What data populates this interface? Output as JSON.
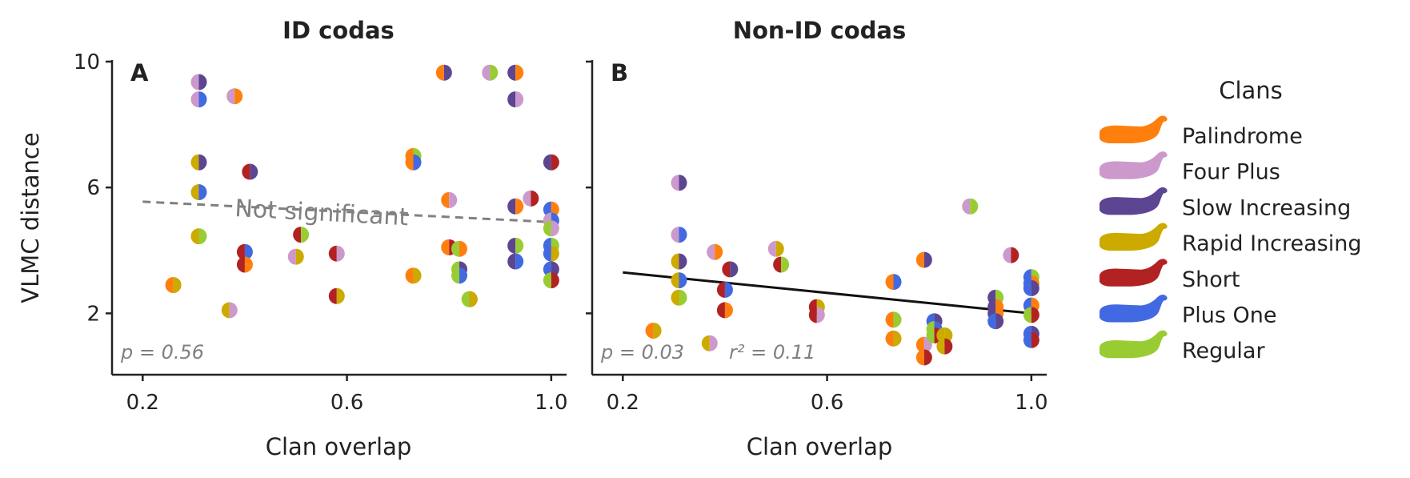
{
  "colors": {
    "Palindrome": "#ff7f0e",
    "Four Plus": "#cc99cc",
    "Slow Increasing": "#5c4591",
    "Rapid Increasing": "#ccaa00",
    "Short": "#b22222",
    "Plus One": "#4169e1",
    "Regular": "#99cc33",
    "axis": "#222222",
    "annotation": "#808080",
    "fit_line": "#111111"
  },
  "legend": {
    "title": "Clans",
    "icon": "sperm-whale-icon",
    "items": [
      "Palindrome",
      "Four Plus",
      "Slow Increasing",
      "Rapid Increasing",
      "Short",
      "Plus One",
      "Regular"
    ]
  },
  "chart_data": [
    {
      "type": "scatter",
      "title": "ID codas",
      "panel_label": "A",
      "xlabel": "Clan overlap",
      "ylabel": "VLMC distance",
      "xlim": [
        0.14,
        1.03
      ],
      "ylim": [
        0.05,
        10.05
      ],
      "xticks": [
        0.2,
        0.6,
        1.0
      ],
      "xtick_labels": [
        "0.2",
        "0.6",
        "1.0"
      ],
      "yticks": [
        2,
        6,
        10
      ],
      "ytick_labels": [
        "2",
        "6",
        "10"
      ],
      "fit": {
        "x": [
          0.2,
          1.0
        ],
        "y": [
          5.55,
          4.9
        ],
        "style": "dashed",
        "label": "Not significant"
      },
      "stat_p": "p = 0.56",
      "points": [
        {
          "x": 0.31,
          "y": 9.35,
          "pair": [
            "Four Plus",
            "Slow Increasing"
          ]
        },
        {
          "x": 0.31,
          "y": 8.8,
          "pair": [
            "Four Plus",
            "Plus One"
          ]
        },
        {
          "x": 0.38,
          "y": 8.9,
          "pair": [
            "Four Plus",
            "Palindrome"
          ]
        },
        {
          "x": 0.31,
          "y": 6.8,
          "pair": [
            "Rapid Increasing",
            "Slow Increasing"
          ]
        },
        {
          "x": 0.31,
          "y": 5.85,
          "pair": [
            "Rapid Increasing",
            "Plus One"
          ]
        },
        {
          "x": 0.31,
          "y": 4.45,
          "pair": [
            "Rapid Increasing",
            "Regular"
          ]
        },
        {
          "x": 0.26,
          "y": 2.9,
          "pair": [
            "Palindrome",
            "Rapid Increasing"
          ]
        },
        {
          "x": 0.37,
          "y": 2.1,
          "pair": [
            "Rapid Increasing",
            "Four Plus"
          ]
        },
        {
          "x": 0.41,
          "y": 6.5,
          "pair": [
            "Short",
            "Slow Increasing"
          ]
        },
        {
          "x": 0.4,
          "y": 3.95,
          "pair": [
            "Short",
            "Plus One"
          ]
        },
        {
          "x": 0.4,
          "y": 3.55,
          "pair": [
            "Short",
            "Palindrome"
          ]
        },
        {
          "x": 0.5,
          "y": 3.8,
          "pair": [
            "Four Plus",
            "Rapid Increasing"
          ]
        },
        {
          "x": 0.51,
          "y": 4.5,
          "pair": [
            "Short",
            "Regular"
          ]
        },
        {
          "x": 0.58,
          "y": 3.9,
          "pair": [
            "Short",
            "Four Plus"
          ]
        },
        {
          "x": 0.58,
          "y": 2.55,
          "pair": [
            "Short",
            "Rapid Increasing"
          ]
        },
        {
          "x": 0.73,
          "y": 7.0,
          "pair": [
            "Palindrome",
            "Regular"
          ]
        },
        {
          "x": 0.73,
          "y": 6.8,
          "pair": [
            "Palindrome",
            "Plus One"
          ]
        },
        {
          "x": 0.73,
          "y": 3.2,
          "pair": [
            "Palindrome",
            "Rapid Increasing"
          ]
        },
        {
          "x": 0.79,
          "y": 9.65,
          "pair": [
            "Palindrome",
            "Slow Increasing"
          ]
        },
        {
          "x": 0.8,
          "y": 5.6,
          "pair": [
            "Palindrome",
            "Four Plus"
          ]
        },
        {
          "x": 0.8,
          "y": 4.1,
          "pair": [
            "Palindrome",
            "Short"
          ]
        },
        {
          "x": 0.82,
          "y": 4.05,
          "pair": [
            "Regular",
            "Palindrome"
          ]
        },
        {
          "x": 0.82,
          "y": 3.4,
          "pair": [
            "Regular",
            "Slow Increasing"
          ]
        },
        {
          "x": 0.82,
          "y": 3.2,
          "pair": [
            "Regular",
            "Plus One"
          ]
        },
        {
          "x": 0.84,
          "y": 2.45,
          "pair": [
            "Rapid Increasing",
            "Short"
          ]
        },
        {
          "x": 0.84,
          "y": 2.45,
          "pair": [
            "Regular",
            "Rapid Increasing"
          ]
        },
        {
          "x": 0.88,
          "y": 9.65,
          "pair": [
            "Four Plus",
            "Regular"
          ]
        },
        {
          "x": 0.93,
          "y": 9.65,
          "pair": [
            "Slow Increasing",
            "Palindrome"
          ]
        },
        {
          "x": 0.93,
          "y": 8.8,
          "pair": [
            "Slow Increasing",
            "Four Plus"
          ]
        },
        {
          "x": 0.93,
          "y": 5.4,
          "pair": [
            "Slow Increasing",
            "Palindrome"
          ]
        },
        {
          "x": 0.93,
          "y": 4.15,
          "pair": [
            "Slow Increasing",
            "Regular"
          ]
        },
        {
          "x": 0.93,
          "y": 3.65,
          "pair": [
            "Slow Increasing",
            "Plus One"
          ]
        },
        {
          "x": 0.96,
          "y": 5.65,
          "pair": [
            "Four Plus",
            "Short"
          ]
        },
        {
          "x": 1.0,
          "y": 6.8,
          "pair": [
            "Slow Increasing",
            "Short"
          ]
        },
        {
          "x": 1.0,
          "y": 5.3,
          "pair": [
            "Plus One",
            "Palindrome"
          ]
        },
        {
          "x": 1.0,
          "y": 4.95,
          "pair": [
            "Four Plus",
            "Plus One"
          ]
        },
        {
          "x": 1.0,
          "y": 4.7,
          "pair": [
            "Regular",
            "Four Plus"
          ]
        },
        {
          "x": 1.0,
          "y": 4.15,
          "pair": [
            "Plus One",
            "Regular"
          ]
        },
        {
          "x": 1.0,
          "y": 3.9,
          "pair": [
            "Plus One",
            "Rapid Increasing"
          ]
        },
        {
          "x": 1.0,
          "y": 3.4,
          "pair": [
            "Plus One",
            "Slow Increasing"
          ]
        },
        {
          "x": 1.0,
          "y": 3.05,
          "pair": [
            "Regular",
            "Short"
          ]
        }
      ]
    },
    {
      "type": "scatter",
      "title": "Non-ID codas",
      "panel_label": "B",
      "xlabel": "Clan overlap",
      "ylabel": "",
      "xlim": [
        0.14,
        1.03
      ],
      "ylim": [
        0.05,
        10.05
      ],
      "xticks": [
        0.2,
        0.6,
        1.0
      ],
      "xtick_labels": [
        "0.2",
        "0.6",
        "1.0"
      ],
      "yticks": [
        2,
        6,
        10
      ],
      "ytick_labels": [
        "",
        "",
        ""
      ],
      "fit": {
        "x": [
          0.2,
          1.0
        ],
        "y": [
          3.3,
          2.0
        ],
        "style": "solid",
        "label": ""
      },
      "stat_p": "p = 0.03",
      "stat_r2": "r² = 0.11",
      "points": [
        {
          "x": 0.31,
          "y": 6.15,
          "pair": [
            "Four Plus",
            "Slow Increasing"
          ]
        },
        {
          "x": 0.31,
          "y": 4.5,
          "pair": [
            "Four Plus",
            "Plus One"
          ]
        },
        {
          "x": 0.31,
          "y": 3.65,
          "pair": [
            "Rapid Increasing",
            "Slow Increasing"
          ]
        },
        {
          "x": 0.31,
          "y": 3.05,
          "pair": [
            "Rapid Increasing",
            "Plus One"
          ]
        },
        {
          "x": 0.31,
          "y": 2.5,
          "pair": [
            "Rapid Increasing",
            "Regular"
          ]
        },
        {
          "x": 0.26,
          "y": 1.45,
          "pair": [
            "Palindrome",
            "Rapid Increasing"
          ]
        },
        {
          "x": 0.37,
          "y": 1.05,
          "pair": [
            "Rapid Increasing",
            "Four Plus"
          ]
        },
        {
          "x": 0.38,
          "y": 3.95,
          "pair": [
            "Four Plus",
            "Palindrome"
          ]
        },
        {
          "x": 0.41,
          "y": 3.4,
          "pair": [
            "Short",
            "Slow Increasing"
          ]
        },
        {
          "x": 0.4,
          "y": 2.75,
          "pair": [
            "Short",
            "Plus One"
          ]
        },
        {
          "x": 0.4,
          "y": 2.1,
          "pair": [
            "Short",
            "Palindrome"
          ]
        },
        {
          "x": 0.5,
          "y": 4.05,
          "pair": [
            "Four Plus",
            "Rapid Increasing"
          ]
        },
        {
          "x": 0.51,
          "y": 3.55,
          "pair": [
            "Short",
            "Regular"
          ]
        },
        {
          "x": 0.58,
          "y": 2.2,
          "pair": [
            "Short",
            "Rapid Increasing"
          ]
        },
        {
          "x": 0.58,
          "y": 1.95,
          "pair": [
            "Short",
            "Four Plus"
          ]
        },
        {
          "x": 0.73,
          "y": 3.0,
          "pair": [
            "Palindrome",
            "Plus One"
          ]
        },
        {
          "x": 0.73,
          "y": 1.8,
          "pair": [
            "Palindrome",
            "Regular"
          ]
        },
        {
          "x": 0.73,
          "y": 1.2,
          "pair": [
            "Palindrome",
            "Rapid Increasing"
          ]
        },
        {
          "x": 0.79,
          "y": 3.7,
          "pair": [
            "Palindrome",
            "Slow Increasing"
          ]
        },
        {
          "x": 0.79,
          "y": 1.0,
          "pair": [
            "Palindrome",
            "Four Plus"
          ]
        },
        {
          "x": 0.79,
          "y": 0.6,
          "pair": [
            "Palindrome",
            "Short"
          ]
        },
        {
          "x": 0.81,
          "y": 1.75,
          "pair": [
            "Plus One",
            "Slow Increasing"
          ]
        },
        {
          "x": 0.81,
          "y": 1.5,
          "pair": [
            "Regular",
            "Plus One"
          ]
        },
        {
          "x": 0.81,
          "y": 1.3,
          "pair": [
            "Regular",
            "Short"
          ]
        },
        {
          "x": 0.83,
          "y": 1.3,
          "pair": [
            "Rapid Increasing",
            "Rapid Increasing"
          ]
        },
        {
          "x": 0.83,
          "y": 0.95,
          "pair": [
            "Rapid Increasing",
            "Short"
          ]
        },
        {
          "x": 0.88,
          "y": 5.4,
          "pair": [
            "Four Plus",
            "Regular"
          ]
        },
        {
          "x": 0.93,
          "y": 2.5,
          "pair": [
            "Slow Increasing",
            "Regular"
          ]
        },
        {
          "x": 0.93,
          "y": 2.2,
          "pair": [
            "Slow Increasing",
            "Palindrome"
          ]
        },
        {
          "x": 0.93,
          "y": 2.0,
          "pair": [
            "Slow Increasing",
            "Palindrome"
          ]
        },
        {
          "x": 0.93,
          "y": 1.75,
          "pair": [
            "Plus One",
            "Slow Increasing"
          ]
        },
        {
          "x": 0.96,
          "y": 3.85,
          "pair": [
            "Four Plus",
            "Short"
          ]
        },
        {
          "x": 1.0,
          "y": 3.15,
          "pair": [
            "Plus One",
            "Regular"
          ]
        },
        {
          "x": 1.0,
          "y": 2.95,
          "pair": [
            "Plus One",
            "Palindrome"
          ]
        },
        {
          "x": 1.0,
          "y": 2.8,
          "pair": [
            "Plus One",
            "Slow Increasing"
          ]
        },
        {
          "x": 1.0,
          "y": 2.25,
          "pair": [
            "Plus One",
            "Palindrome"
          ]
        },
        {
          "x": 1.0,
          "y": 1.95,
          "pair": [
            "Regular",
            "Short"
          ]
        },
        {
          "x": 1.0,
          "y": 1.35,
          "pair": [
            "Plus One",
            "Slow Increasing"
          ]
        },
        {
          "x": 1.0,
          "y": 1.15,
          "pair": [
            "Plus One",
            "Short"
          ]
        }
      ]
    }
  ]
}
